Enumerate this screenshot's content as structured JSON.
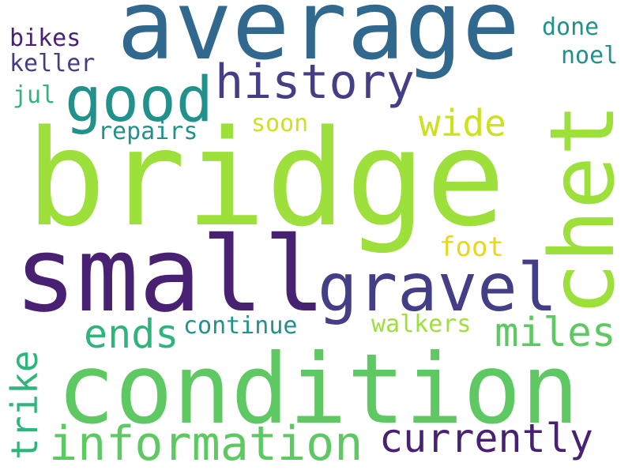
{
  "palette": {
    "dark_purple": "#482173",
    "indigo": "#433e85",
    "blue": "#31688e",
    "teal": "#21918c",
    "green": "#2fb47c",
    "light_green": "#5ec962",
    "lime": "#9ddf3b",
    "yellow": "#cde11d",
    "gold": "#e8d81d"
  },
  "words": {
    "bridge": "bridge",
    "average": "average",
    "chet": "chet",
    "small": "small",
    "condition": "condition",
    "gravel": "gravel",
    "history": "history",
    "good": "good",
    "information": "information",
    "currently": "currently",
    "miles": "miles",
    "ends": "ends",
    "wide": "wide",
    "trike": "trike",
    "walkers": "walkers",
    "continue": "continue",
    "repairs": "repairs",
    "soon": "soon",
    "foot": "foot",
    "bikes": "bikes",
    "keller": "keller",
    "jul": "jul",
    "done": "done",
    "noel": "noel"
  }
}
